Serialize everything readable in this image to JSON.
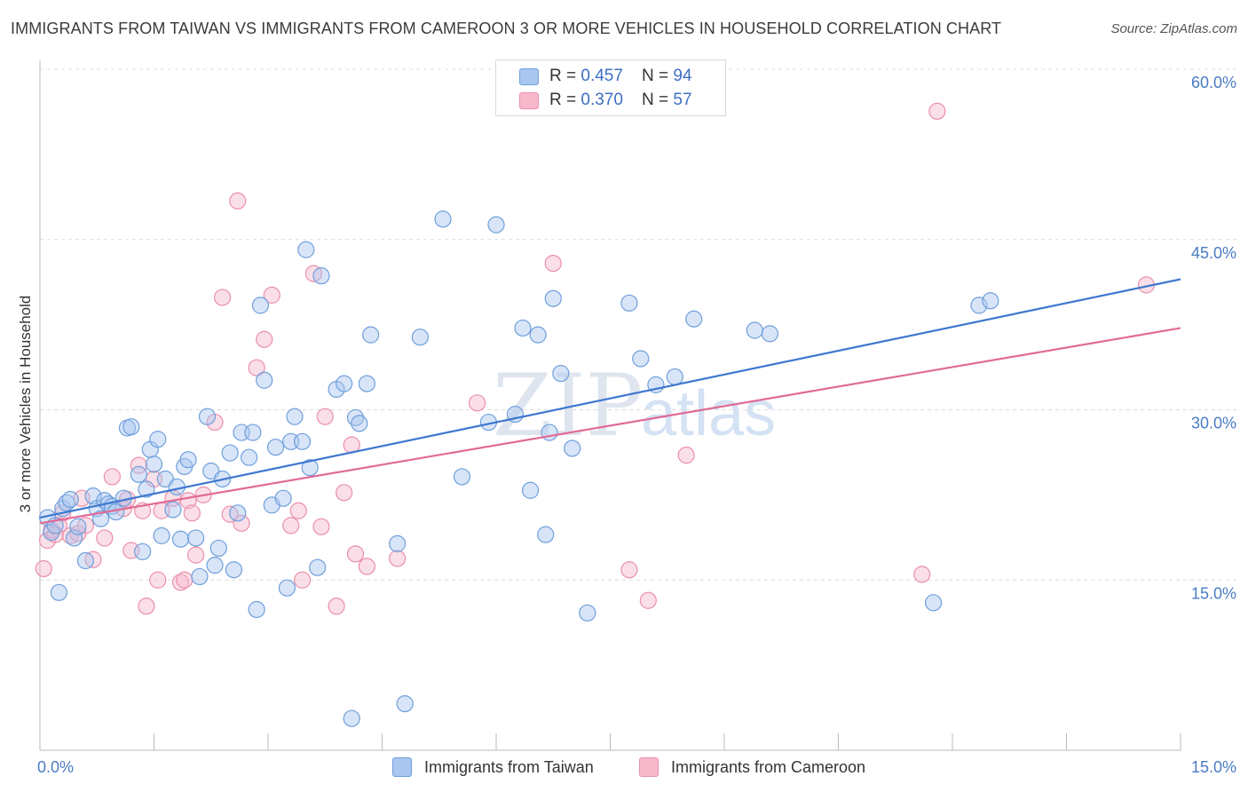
{
  "header": {
    "title": "IMMIGRANTS FROM TAIWAN VS IMMIGRANTS FROM CAMEROON 3 OR MORE VEHICLES IN HOUSEHOLD CORRELATION CHART",
    "source": "Source: ZipAtlas.com"
  },
  "watermark": {
    "zip": "ZIP",
    "atlas": "atlas"
  },
  "legend": {
    "taiwan": {
      "r_label": "R = ",
      "r_value": "0.457",
      "n_label": "N = ",
      "n_value": "94",
      "color": "#a9c6ef",
      "stroke": "#6f9fdc"
    },
    "cameroon": {
      "r_label": "R = ",
      "r_value": "0.370",
      "n_label": "N = ",
      "n_value": "57",
      "color": "#f7b8cb",
      "stroke": "#ea8fab"
    }
  },
  "chart_data": {
    "type": "scatter",
    "title": "IMMIGRANTS FROM TAIWAN VS IMMIGRANTS FROM CAMEROON 3 OR MORE VEHICLES IN HOUSEHOLD CORRELATION CHART",
    "xlabel": "",
    "ylabel": "3 or more Vehicles in Household",
    "xlim": [
      0,
      15
    ],
    "ylim": [
      0,
      60
    ],
    "x_tick_labels": [
      "0.0%",
      "15.0%"
    ],
    "y_ticks": [
      15,
      30,
      45,
      60
    ],
    "y_tick_labels": [
      "15.0%",
      "30.0%",
      "45.0%",
      "60.0%"
    ],
    "grid": true,
    "legend_position": "top-center",
    "series": [
      {
        "name": "Immigrants from Taiwan",
        "color": "#6f9fdc",
        "fill": "#a9c6ef",
        "trend": {
          "x": [
            0,
            15
          ],
          "y": [
            20.5,
            41.5
          ]
        },
        "points": [
          [
            0.1,
            20.5
          ],
          [
            0.15,
            19.2
          ],
          [
            0.2,
            19.8
          ],
          [
            0.25,
            13.9
          ],
          [
            0.3,
            21.3
          ],
          [
            0.35,
            21.8
          ],
          [
            0.4,
            22.1
          ],
          [
            0.45,
            18.7
          ],
          [
            0.5,
            19.7
          ],
          [
            0.6,
            16.7
          ],
          [
            0.7,
            22.4
          ],
          [
            0.75,
            21.3
          ],
          [
            0.8,
            20.4
          ],
          [
            0.85,
            22.0
          ],
          [
            0.9,
            21.7
          ],
          [
            0.95,
            21.5
          ],
          [
            1.0,
            21.0
          ],
          [
            1.1,
            22.2
          ],
          [
            1.15,
            28.4
          ],
          [
            1.2,
            28.5
          ],
          [
            1.3,
            24.3
          ],
          [
            1.35,
            17.5
          ],
          [
            1.4,
            23.0
          ],
          [
            1.45,
            26.5
          ],
          [
            1.5,
            25.2
          ],
          [
            1.55,
            27.4
          ],
          [
            1.6,
            18.9
          ],
          [
            1.65,
            23.9
          ],
          [
            1.75,
            21.2
          ],
          [
            1.8,
            23.2
          ],
          [
            1.85,
            18.6
          ],
          [
            1.9,
            25.0
          ],
          [
            1.95,
            25.6
          ],
          [
            2.05,
            18.7
          ],
          [
            2.1,
            15.3
          ],
          [
            2.2,
            29.4
          ],
          [
            2.25,
            24.6
          ],
          [
            2.3,
            16.3
          ],
          [
            2.35,
            17.8
          ],
          [
            2.4,
            23.9
          ],
          [
            2.5,
            26.2
          ],
          [
            2.55,
            15.9
          ],
          [
            2.6,
            20.9
          ],
          [
            2.65,
            28.0
          ],
          [
            2.75,
            25.8
          ],
          [
            2.8,
            28.0
          ],
          [
            2.85,
            12.4
          ],
          [
            2.9,
            39.2
          ],
          [
            2.95,
            32.6
          ],
          [
            3.05,
            21.6
          ],
          [
            3.1,
            26.7
          ],
          [
            3.2,
            22.2
          ],
          [
            3.25,
            14.3
          ],
          [
            3.3,
            27.2
          ],
          [
            3.35,
            29.4
          ],
          [
            3.45,
            27.2
          ],
          [
            3.5,
            44.1
          ],
          [
            3.55,
            24.9
          ],
          [
            3.65,
            16.1
          ],
          [
            3.7,
            41.8
          ],
          [
            3.9,
            31.8
          ],
          [
            4.0,
            32.3
          ],
          [
            4.1,
            2.8
          ],
          [
            4.15,
            29.3
          ],
          [
            4.2,
            28.8
          ],
          [
            4.3,
            32.3
          ],
          [
            4.35,
            36.6
          ],
          [
            4.7,
            18.2
          ],
          [
            4.8,
            4.1
          ],
          [
            5.0,
            36.4
          ],
          [
            5.3,
            46.8
          ],
          [
            5.55,
            24.1
          ],
          [
            5.9,
            28.9
          ],
          [
            6.0,
            46.3
          ],
          [
            6.25,
            29.6
          ],
          [
            6.35,
            37.2
          ],
          [
            6.45,
            22.9
          ],
          [
            6.55,
            36.6
          ],
          [
            6.65,
            19.0
          ],
          [
            6.7,
            28.0
          ],
          [
            6.75,
            39.8
          ],
          [
            6.85,
            33.2
          ],
          [
            7.0,
            26.6
          ],
          [
            7.2,
            12.1
          ],
          [
            7.75,
            39.4
          ],
          [
            7.9,
            34.5
          ],
          [
            8.1,
            32.2
          ],
          [
            8.35,
            32.9
          ],
          [
            8.6,
            38.0
          ],
          [
            9.4,
            37.0
          ],
          [
            9.6,
            36.7
          ],
          [
            11.75,
            13.0
          ],
          [
            12.35,
            39.2
          ],
          [
            12.5,
            39.6
          ]
        ]
      },
      {
        "name": "Immigrants from Cameroon",
        "color": "#ea8fab",
        "fill": "#f7b8cb",
        "trend": {
          "x": [
            0,
            15
          ],
          "y": [
            20.0,
            37.2
          ]
        },
        "points": [
          [
            0.05,
            16.0
          ],
          [
            0.1,
            18.5
          ],
          [
            0.15,
            19.4
          ],
          [
            0.25,
            19.8
          ],
          [
            0.3,
            20.9
          ],
          [
            0.4,
            18.9
          ],
          [
            0.5,
            19.1
          ],
          [
            0.55,
            22.2
          ],
          [
            0.6,
            19.8
          ],
          [
            0.7,
            16.8
          ],
          [
            0.85,
            18.7
          ],
          [
            0.95,
            24.1
          ],
          [
            1.1,
            21.3
          ],
          [
            1.15,
            22.1
          ],
          [
            1.2,
            17.6
          ],
          [
            1.3,
            25.1
          ],
          [
            1.35,
            21.1
          ],
          [
            1.4,
            12.7
          ],
          [
            1.5,
            23.9
          ],
          [
            1.55,
            15.0
          ],
          [
            1.6,
            21.1
          ],
          [
            1.75,
            22.2
          ],
          [
            1.85,
            14.8
          ],
          [
            1.9,
            15.0
          ],
          [
            1.95,
            22.0
          ],
          [
            2.0,
            20.9
          ],
          [
            2.05,
            17.2
          ],
          [
            2.15,
            22.5
          ],
          [
            2.3,
            28.9
          ],
          [
            2.4,
            39.9
          ],
          [
            2.5,
            20.8
          ],
          [
            2.6,
            48.4
          ],
          [
            2.65,
            20.0
          ],
          [
            2.85,
            33.7
          ],
          [
            2.95,
            36.2
          ],
          [
            3.05,
            40.1
          ],
          [
            3.3,
            19.8
          ],
          [
            3.4,
            21.1
          ],
          [
            3.45,
            15.0
          ],
          [
            3.6,
            42.0
          ],
          [
            3.7,
            19.7
          ],
          [
            3.75,
            29.4
          ],
          [
            3.9,
            12.7
          ],
          [
            4.0,
            22.7
          ],
          [
            4.1,
            26.9
          ],
          [
            4.15,
            17.3
          ],
          [
            4.3,
            16.2
          ],
          [
            4.7,
            16.9
          ],
          [
            5.75,
            30.6
          ],
          [
            6.75,
            42.9
          ],
          [
            7.75,
            15.9
          ],
          [
            8.0,
            13.2
          ],
          [
            8.5,
            26.0
          ],
          [
            11.6,
            15.5
          ],
          [
            11.8,
            56.3
          ],
          [
            14.55,
            41.0
          ],
          [
            0.2,
            19.0
          ]
        ]
      }
    ]
  },
  "bottom_legend": {
    "taiwan_label": "Immigrants from Taiwan",
    "cameroon_label": "Immigrants from Cameroon"
  }
}
